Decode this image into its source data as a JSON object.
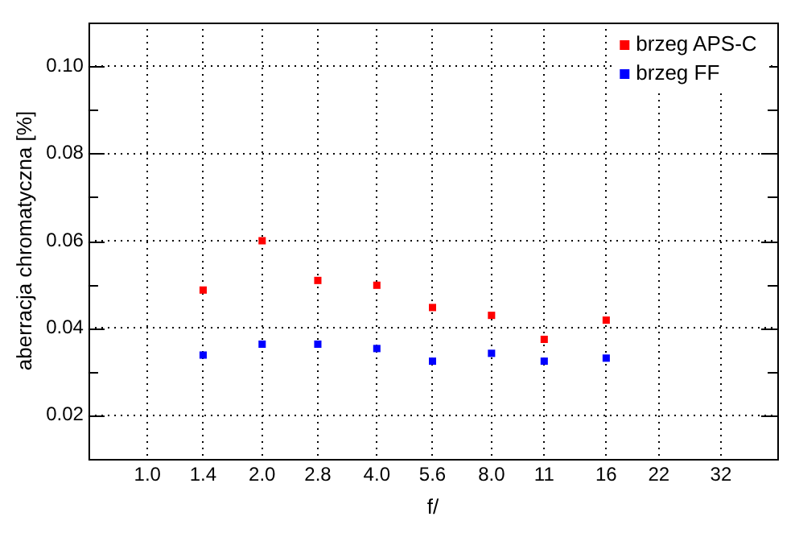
{
  "chart_data": {
    "type": "scatter",
    "xlabel": "f/",
    "ylabel": "aberracja chromatyczna [%]",
    "log": "x",
    "x": [
      1.4,
      2.0,
      2.8,
      4.0,
      5.6,
      8.0,
      11,
      16
    ],
    "series": [
      {
        "name": "brzeg APS-C",
        "color": "#ff0000",
        "values": [
          0.0487,
          0.06,
          0.0509,
          0.0498,
          0.0447,
          0.0429,
          0.0374,
          0.0418
        ]
      },
      {
        "name": "brzeg FF",
        "color": "#0000ff",
        "values": [
          0.0338,
          0.0363,
          0.0363,
          0.0353,
          0.0324,
          0.0342,
          0.0324,
          0.0331
        ]
      }
    ],
    "xlim": [
      0.71,
      45
    ],
    "xticks": [
      {
        "value": 1,
        "label": "1.0"
      },
      {
        "value": 1.4,
        "label": "1.4"
      },
      {
        "value": 2,
        "label": "2.0"
      },
      {
        "value": 2.8,
        "label": "2.8"
      },
      {
        "value": 4,
        "label": "4.0"
      },
      {
        "value": 5.6,
        "label": "5.6"
      },
      {
        "value": 8,
        "label": "8.0"
      },
      11,
      16,
      22,
      32
    ],
    "ylim": [
      0.01,
      0.11
    ],
    "yticks": [
      {
        "value": 0.02,
        "label": "0.02"
      },
      {
        "value": 0.03,
        "label": null
      },
      {
        "value": 0.04,
        "label": "0.04"
      },
      {
        "value": 0.05,
        "label": null
      },
      {
        "value": 0.06,
        "label": "0.06"
      },
      {
        "value": 0.07,
        "label": null
      },
      {
        "value": 0.08,
        "label": "0.08"
      },
      {
        "value": 0.09,
        "label": null
      },
      {
        "value": 0.1,
        "label": "0.10"
      }
    ],
    "grid": true,
    "legend": "top right",
    "marker": "square"
  }
}
